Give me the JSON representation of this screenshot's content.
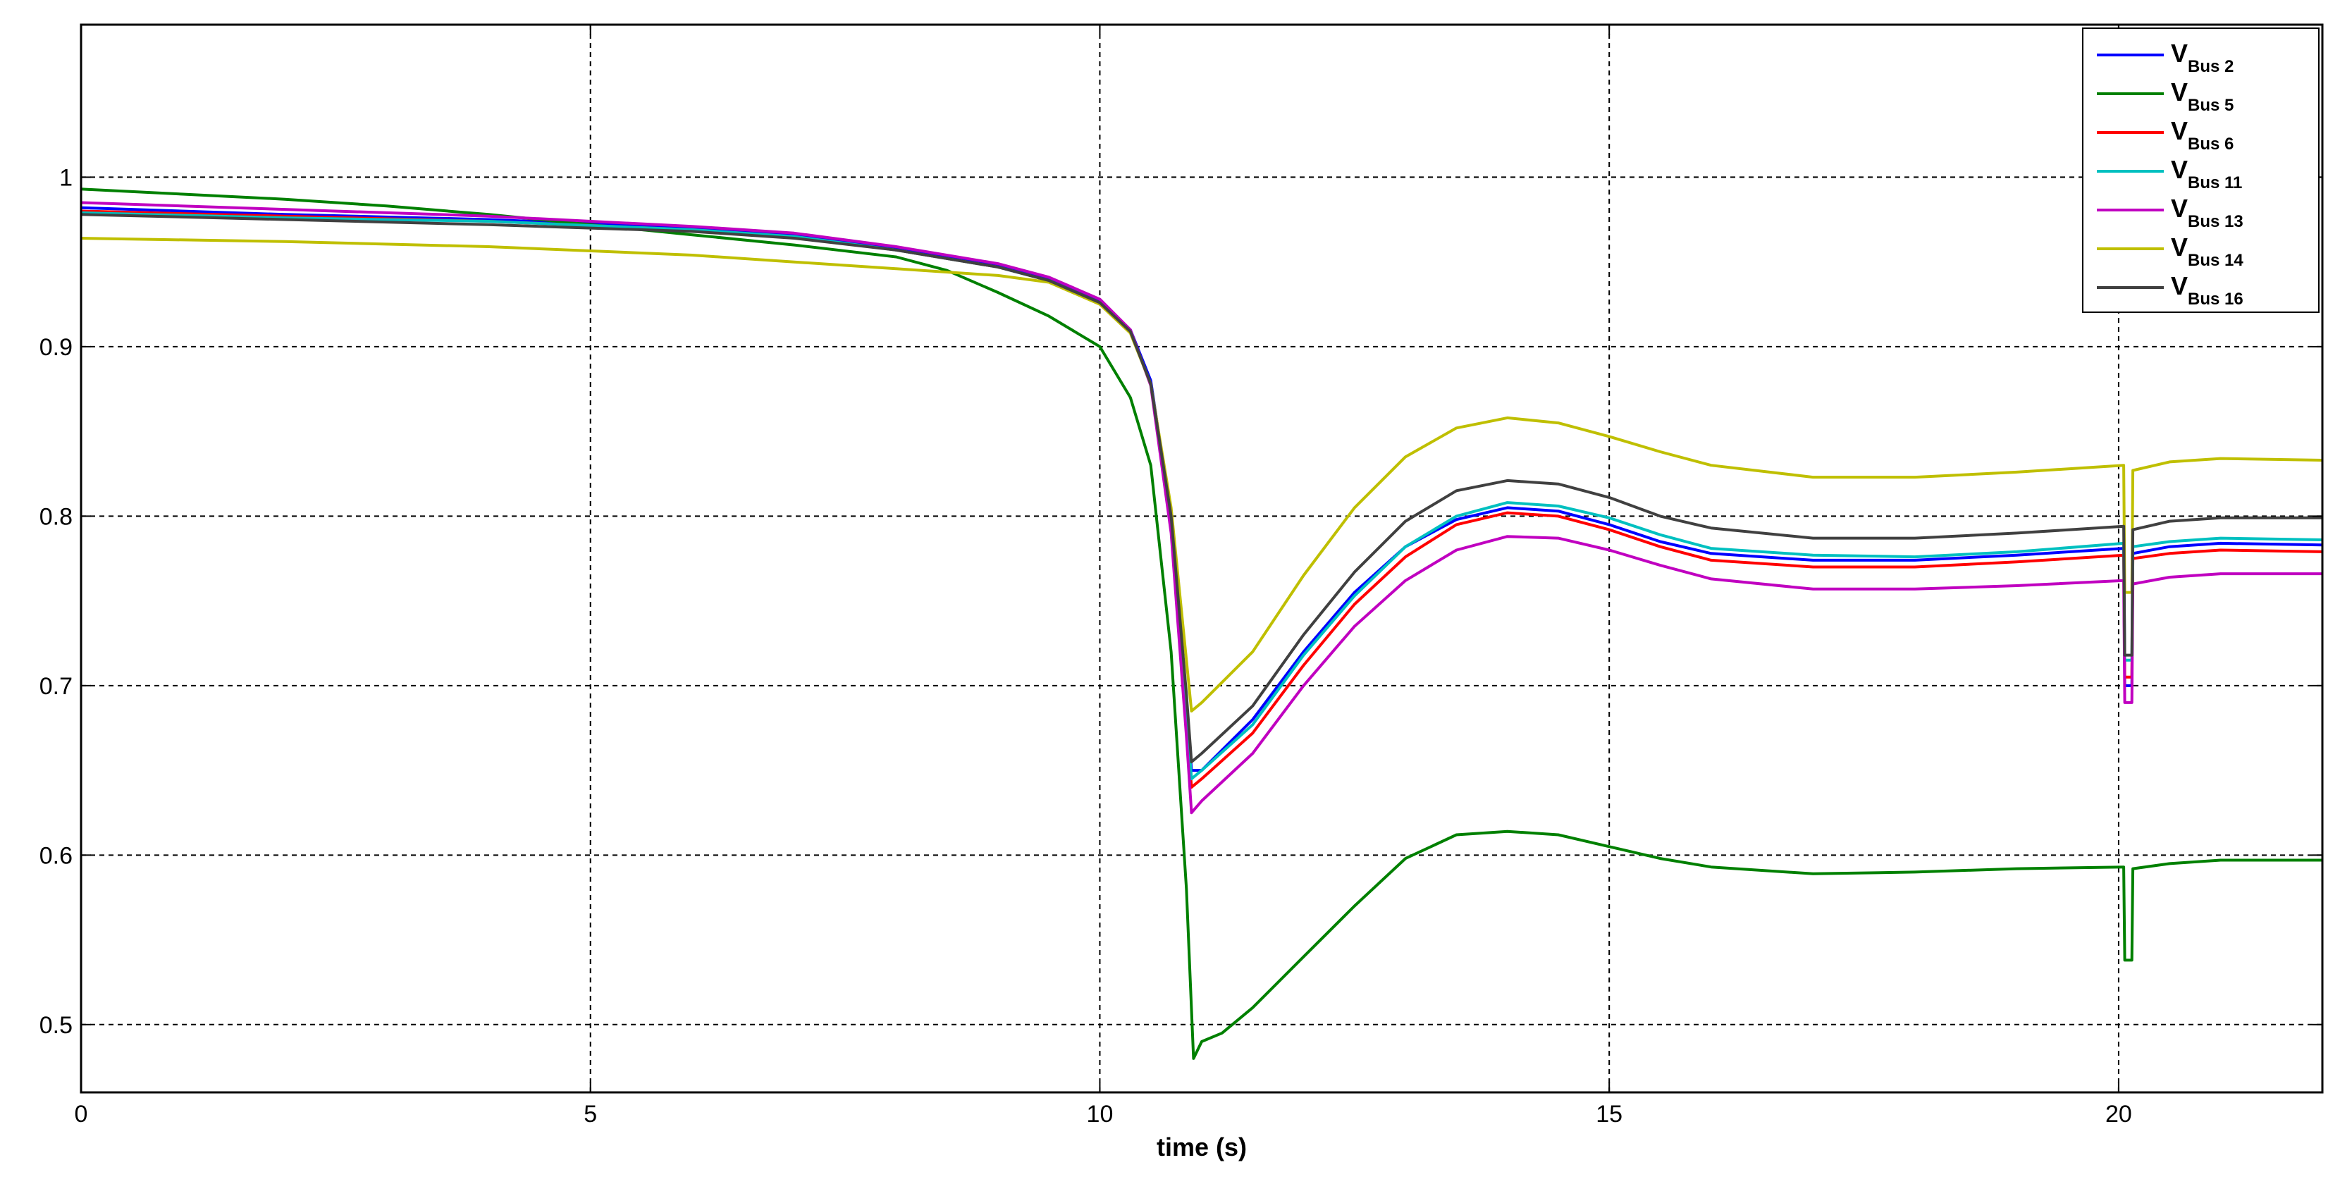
{
  "chart_data": {
    "type": "line",
    "title": "",
    "xlabel": "time (s)",
    "ylabel": "",
    "xlim": [
      0,
      22
    ],
    "ylim": [
      0.46,
      1.09
    ],
    "xticks": [
      0,
      5,
      10,
      15,
      20
    ],
    "yticks": [
      0.5,
      0.6,
      0.7,
      0.8,
      0.9,
      1
    ],
    "xtick_labels": [
      "0",
      "5",
      "10",
      "15",
      "20"
    ],
    "ytick_labels": [
      "0.5",
      "0.6",
      "0.7",
      "0.8",
      "0.9",
      "1"
    ],
    "grid": true,
    "legend_position": "top-right",
    "series": [
      {
        "name": "V Bus 2",
        "label_main": "V",
        "label_sub": "Bus  2",
        "color": "#0000ff",
        "x": [
          0,
          2,
          4,
          6,
          7,
          8,
          9,
          9.5,
          10,
          10.3,
          10.5,
          10.7,
          10.85,
          10.9,
          11.0,
          11.5,
          12,
          12.5,
          13,
          13.5,
          14,
          14.5,
          15,
          15.5,
          16,
          17,
          18,
          19,
          20.05,
          20.06,
          20.13,
          20.14,
          20.5,
          21,
          22
        ],
        "y": [
          0.982,
          0.978,
          0.975,
          0.97,
          0.966,
          0.958,
          0.948,
          0.94,
          0.927,
          0.91,
          0.88,
          0.8,
          0.69,
          0.65,
          0.65,
          0.68,
          0.72,
          0.755,
          0.782,
          0.798,
          0.805,
          0.803,
          0.795,
          0.785,
          0.778,
          0.774,
          0.774,
          0.777,
          0.781,
          0.7,
          0.7,
          0.778,
          0.782,
          0.784,
          0.783
        ]
      },
      {
        "name": "V Bus 5",
        "label_main": "V",
        "label_sub": "Bus  5",
        "color": "#008000",
        "x": [
          0,
          1,
          2,
          3,
          4,
          5,
          6,
          7,
          8,
          8.5,
          9,
          9.5,
          10,
          10.3,
          10.5,
          10.7,
          10.85,
          10.92,
          11.0,
          11.2,
          11.5,
          12,
          12.5,
          13,
          13.5,
          14,
          14.5,
          15,
          15.5,
          16,
          17,
          18,
          19,
          20.05,
          20.06,
          20.13,
          20.14,
          20.5,
          21,
          22
        ],
        "y": [
          0.993,
          0.99,
          0.987,
          0.983,
          0.978,
          0.972,
          0.966,
          0.96,
          0.953,
          0.945,
          0.932,
          0.918,
          0.9,
          0.87,
          0.83,
          0.72,
          0.58,
          0.48,
          0.49,
          0.495,
          0.51,
          0.54,
          0.57,
          0.598,
          0.612,
          0.614,
          0.612,
          0.605,
          0.598,
          0.593,
          0.589,
          0.59,
          0.592,
          0.593,
          0.538,
          0.538,
          0.592,
          0.595,
          0.597,
          0.597
        ]
      },
      {
        "name": "V Bus 6",
        "label_main": "V",
        "label_sub": "Bus  6",
        "color": "#ff0000",
        "x": [
          0,
          2,
          4,
          6,
          7,
          8,
          9,
          9.5,
          10,
          10.3,
          10.5,
          10.7,
          10.85,
          10.9,
          11.0,
          11.5,
          12,
          12.5,
          13,
          13.5,
          14,
          14.5,
          15,
          15.5,
          16,
          17,
          18,
          19,
          20.05,
          20.06,
          20.13,
          20.14,
          20.5,
          21,
          22
        ],
        "y": [
          0.98,
          0.977,
          0.974,
          0.969,
          0.965,
          0.957,
          0.947,
          0.939,
          0.926,
          0.909,
          0.878,
          0.795,
          0.68,
          0.64,
          0.645,
          0.672,
          0.712,
          0.748,
          0.776,
          0.795,
          0.802,
          0.8,
          0.792,
          0.782,
          0.774,
          0.77,
          0.77,
          0.773,
          0.777,
          0.705,
          0.705,
          0.775,
          0.778,
          0.78,
          0.779
        ]
      },
      {
        "name": "V Bus 11",
        "label_main": "V",
        "label_sub": "Bus 11",
        "color": "#00c0c0",
        "x": [
          0,
          2,
          4,
          6,
          7,
          8,
          9,
          9.5,
          10,
          10.3,
          10.5,
          10.7,
          10.85,
          10.9,
          11.0,
          11.5,
          12,
          12.5,
          13,
          13.5,
          14,
          14.5,
          15,
          15.5,
          16,
          17,
          18,
          19,
          20.05,
          20.06,
          20.13,
          20.14,
          20.5,
          21,
          22
        ],
        "y": [
          0.979,
          0.976,
          0.974,
          0.969,
          0.965,
          0.957,
          0.947,
          0.939,
          0.926,
          0.909,
          0.878,
          0.797,
          0.685,
          0.645,
          0.65,
          0.677,
          0.718,
          0.753,
          0.782,
          0.8,
          0.808,
          0.806,
          0.799,
          0.789,
          0.781,
          0.777,
          0.776,
          0.779,
          0.784,
          0.715,
          0.715,
          0.782,
          0.785,
          0.787,
          0.786
        ]
      },
      {
        "name": "V Bus 13",
        "label_main": "V",
        "label_sub": "Bus 13",
        "color": "#c000c0",
        "x": [
          0,
          2,
          4,
          6,
          7,
          8,
          9,
          9.5,
          10,
          10.3,
          10.5,
          10.7,
          10.85,
          10.9,
          11.0,
          11.5,
          12,
          12.5,
          13,
          13.5,
          14,
          14.5,
          15,
          15.5,
          16,
          17,
          18,
          19,
          20.05,
          20.06,
          20.13,
          20.14,
          20.5,
          21,
          22
        ],
        "y": [
          0.985,
          0.981,
          0.977,
          0.971,
          0.967,
          0.959,
          0.949,
          0.941,
          0.928,
          0.91,
          0.877,
          0.79,
          0.67,
          0.625,
          0.632,
          0.66,
          0.7,
          0.735,
          0.762,
          0.78,
          0.788,
          0.787,
          0.78,
          0.771,
          0.763,
          0.757,
          0.757,
          0.759,
          0.762,
          0.69,
          0.69,
          0.76,
          0.764,
          0.766,
          0.766
        ]
      },
      {
        "name": "V Bus 14",
        "label_main": "V",
        "label_sub": "Bus 14",
        "color": "#bfbf00",
        "x": [
          0,
          2,
          4,
          6,
          7,
          8,
          9,
          9.5,
          10,
          10.3,
          10.5,
          10.7,
          10.85,
          10.9,
          11.0,
          11.5,
          12,
          12.5,
          13,
          13.5,
          14,
          14.5,
          15,
          15.5,
          16,
          17,
          18,
          19,
          20.05,
          20.06,
          20.13,
          20.14,
          20.5,
          21,
          22
        ],
        "y": [
          0.964,
          0.962,
          0.959,
          0.954,
          0.95,
          0.946,
          0.942,
          0.938,
          0.925,
          0.908,
          0.878,
          0.805,
          0.715,
          0.685,
          0.69,
          0.72,
          0.765,
          0.805,
          0.835,
          0.852,
          0.858,
          0.855,
          0.847,
          0.838,
          0.83,
          0.823,
          0.823,
          0.826,
          0.83,
          0.755,
          0.755,
          0.827,
          0.832,
          0.834,
          0.833
        ]
      },
      {
        "name": "V Bus 16",
        "label_main": "V",
        "label_sub": "Bus 16",
        "color": "#404040",
        "x": [
          0,
          2,
          4,
          6,
          7,
          8,
          9,
          9.5,
          10,
          10.3,
          10.5,
          10.7,
          10.85,
          10.9,
          11.0,
          11.5,
          12,
          12.5,
          13,
          13.5,
          14,
          14.5,
          15,
          15.5,
          16,
          17,
          18,
          19,
          20.05,
          20.06,
          20.13,
          20.14,
          20.5,
          21,
          22
        ],
        "y": [
          0.978,
          0.975,
          0.972,
          0.968,
          0.964,
          0.957,
          0.947,
          0.939,
          0.926,
          0.909,
          0.878,
          0.8,
          0.695,
          0.655,
          0.66,
          0.688,
          0.73,
          0.767,
          0.797,
          0.815,
          0.821,
          0.819,
          0.811,
          0.8,
          0.793,
          0.787,
          0.787,
          0.79,
          0.794,
          0.718,
          0.718,
          0.792,
          0.797,
          0.799,
          0.799
        ]
      }
    ]
  }
}
